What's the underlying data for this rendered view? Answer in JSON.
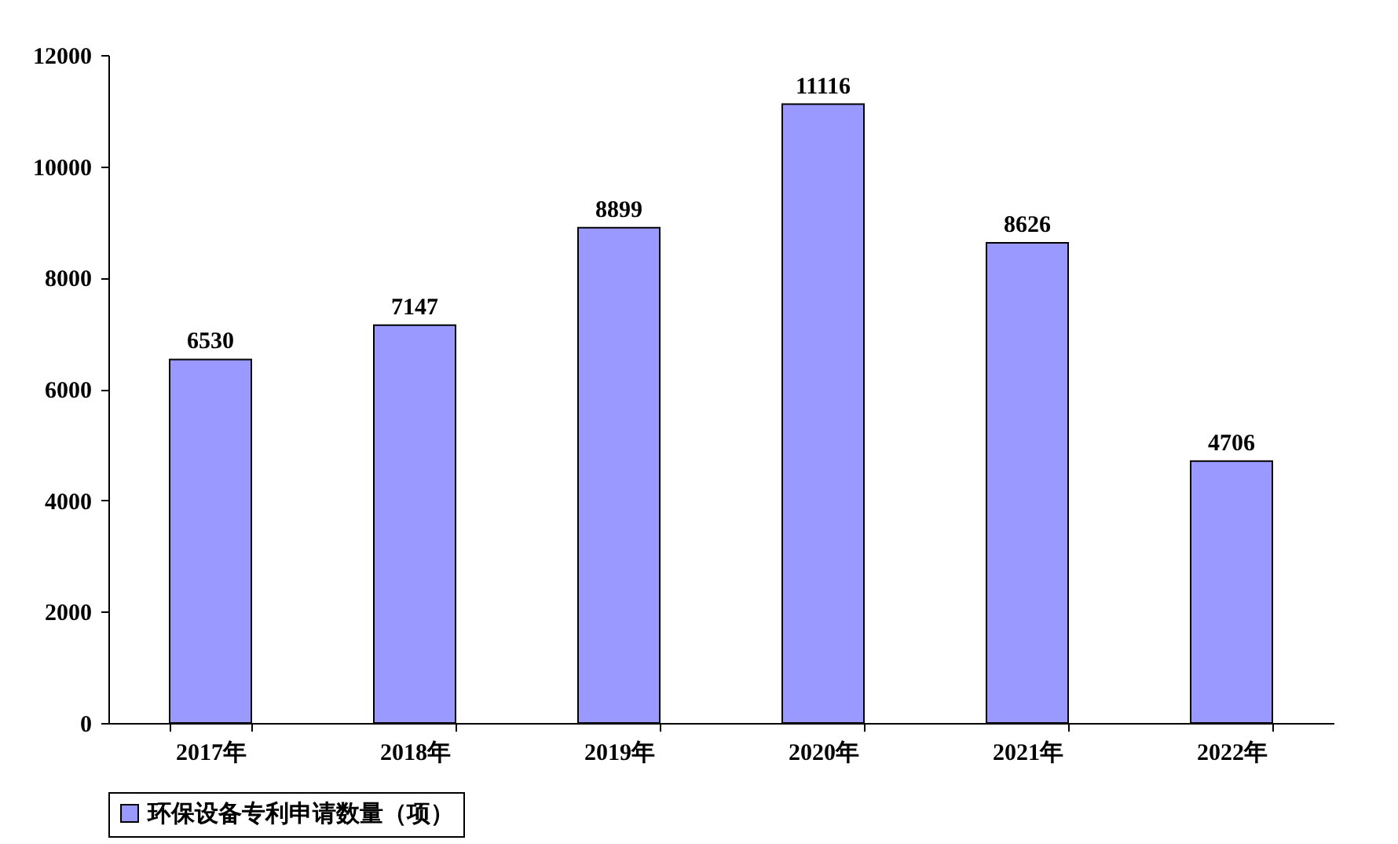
{
  "chart_data": {
    "type": "bar",
    "categories": [
      "2017年",
      "2018年",
      "2019年",
      "2020年",
      "2021年",
      "2022年"
    ],
    "series": [
      {
        "name": "环保设备专利申请数量（项）",
        "color": "#9999ff",
        "values": [
          6530,
          7147,
          8899,
          11116,
          8626,
          4706
        ]
      }
    ],
    "ylim": [
      0,
      12000
    ],
    "yticks": [
      0,
      2000,
      4000,
      6000,
      8000,
      10000,
      12000
    ],
    "data_labels": true,
    "grid": false,
    "legend": "bottom"
  }
}
